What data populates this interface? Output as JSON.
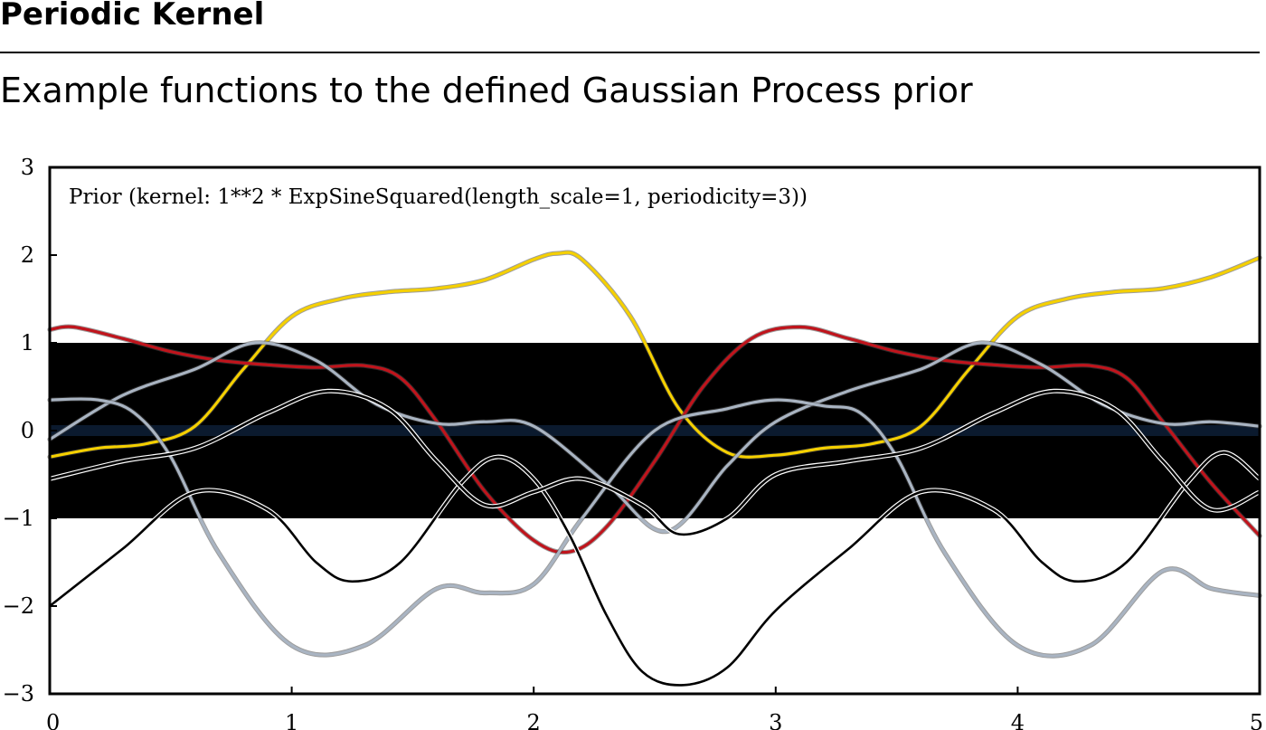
{
  "page": {
    "heading": "Periodic Kernel",
    "subheading": "Example functions to the defined Gaussian Process prior"
  },
  "chart_data": {
    "type": "line",
    "title": "Prior (kernel:  1**2 * ExpSineSquared(length_scale=1, periodicity=3))",
    "xlabel": "",
    "ylabel": "",
    "xlim": [
      0,
      5
    ],
    "ylim": [
      -3,
      3
    ],
    "xticks": [
      "0",
      "1",
      "2",
      "3",
      "4",
      "5"
    ],
    "yticks": [
      "−3",
      "−2",
      "−1",
      "0",
      "1",
      "2",
      "3"
    ],
    "xtick_values": [
      0,
      1,
      2,
      3,
      4,
      5
    ],
    "ytick_values": [
      -3,
      -2,
      -1,
      0,
      1,
      2,
      3
    ],
    "grid": false,
    "band": {
      "mean": 0,
      "lower": -1,
      "upper": 1,
      "color": "#000000"
    },
    "mean_line_color": "#0b1a2e",
    "series": [
      {
        "color": "#f5d000",
        "x": [
          0,
          0.2,
          0.4,
          0.6,
          0.8,
          1.0,
          1.2,
          1.4,
          1.6,
          1.8,
          2.0,
          2.1,
          2.2,
          2.4,
          2.6,
          2.8,
          3.0,
          3.2,
          3.4,
          3.6,
          3.8,
          4.0,
          4.2,
          4.4,
          4.6,
          4.8,
          5.0
        ],
        "y": [
          -0.3,
          -0.2,
          -0.15,
          0.05,
          0.7,
          1.3,
          1.5,
          1.58,
          1.62,
          1.72,
          1.95,
          2.02,
          1.95,
          1.3,
          0.25,
          -0.25,
          -0.28,
          -0.2,
          -0.15,
          0.05,
          0.7,
          1.3,
          1.5,
          1.58,
          1.62,
          1.75,
          1.97
        ]
      },
      {
        "color": "#c0141c",
        "x": [
          0,
          0.1,
          0.3,
          0.5,
          0.7,
          0.9,
          1.1,
          1.3,
          1.45,
          1.6,
          1.8,
          2.0,
          2.15,
          2.3,
          2.5,
          2.7,
          2.9,
          3.1,
          3.3,
          3.5,
          3.7,
          3.9,
          4.1,
          4.3,
          4.45,
          4.6,
          4.8,
          5.0
        ],
        "y": [
          1.15,
          1.18,
          1.05,
          0.9,
          0.8,
          0.75,
          0.72,
          0.74,
          0.6,
          0.1,
          -0.7,
          -1.25,
          -1.38,
          -1.1,
          -0.35,
          0.5,
          1.05,
          1.18,
          1.05,
          0.9,
          0.8,
          0.75,
          0.72,
          0.74,
          0.6,
          0.1,
          -0.6,
          -1.2
        ]
      },
      {
        "color": "#a9b4c2",
        "x": [
          0,
          0.3,
          0.6,
          0.85,
          1.1,
          1.35,
          1.6,
          1.8,
          2.0,
          2.3,
          2.55,
          2.8,
          3.0,
          3.3,
          3.6,
          3.85,
          4.1,
          4.35,
          4.6,
          4.8,
          5.0
        ],
        "y": [
          -0.1,
          0.4,
          0.7,
          1.0,
          0.8,
          0.3,
          0.08,
          0.1,
          0.05,
          -0.6,
          -1.15,
          -0.4,
          0.1,
          0.45,
          0.7,
          1.0,
          0.75,
          0.3,
          0.08,
          0.1,
          0.05
        ]
      },
      {
        "color": "#a9b4c2",
        "x": [
          0,
          0.2,
          0.35,
          0.5,
          0.7,
          1.0,
          1.3,
          1.6,
          1.8,
          2.0,
          2.2,
          2.5,
          2.8,
          3.0,
          3.2,
          3.35,
          3.5,
          3.7,
          4.0,
          4.3,
          4.6,
          4.8,
          5.0
        ],
        "y": [
          0.35,
          0.35,
          0.2,
          -0.3,
          -1.4,
          -2.45,
          -2.45,
          -1.8,
          -1.85,
          -1.75,
          -1.0,
          0.0,
          0.25,
          0.35,
          0.28,
          0.2,
          -0.3,
          -1.4,
          -2.45,
          -2.45,
          -1.6,
          -1.8,
          -1.88
        ]
      },
      {
        "color": "#000000",
        "x": [
          0,
          0.3,
          0.6,
          0.9,
          1.1,
          1.25,
          1.45,
          1.7,
          1.85,
          2.0,
          2.15,
          2.3,
          2.45,
          2.62,
          2.8,
          3.0,
          3.3,
          3.6,
          3.9,
          4.1,
          4.25,
          4.45,
          4.7,
          4.85,
          5.0
        ],
        "y": [
          -2.0,
          -1.35,
          -0.7,
          -0.9,
          -1.5,
          -1.72,
          -1.5,
          -0.6,
          -0.3,
          -0.55,
          -1.2,
          -2.1,
          -2.75,
          -2.9,
          -2.7,
          -2.05,
          -1.35,
          -0.7,
          -0.9,
          -1.5,
          -1.72,
          -1.5,
          -0.6,
          -0.25,
          -0.55
        ]
      },
      {
        "color": "#000000",
        "x": [
          0,
          0.3,
          0.6,
          0.9,
          1.15,
          1.4,
          1.6,
          1.8,
          2.0,
          2.2,
          2.45,
          2.6,
          2.8,
          3.0,
          3.3,
          3.6,
          3.9,
          4.15,
          4.4,
          4.6,
          4.8,
          5.0
        ],
        "y": [
          -0.55,
          -0.35,
          -0.2,
          0.2,
          0.45,
          0.25,
          -0.35,
          -0.85,
          -0.7,
          -0.55,
          -0.85,
          -1.18,
          -1.0,
          -0.5,
          -0.35,
          -0.2,
          0.2,
          0.45,
          0.25,
          -0.35,
          -0.9,
          -0.7
        ]
      }
    ]
  }
}
